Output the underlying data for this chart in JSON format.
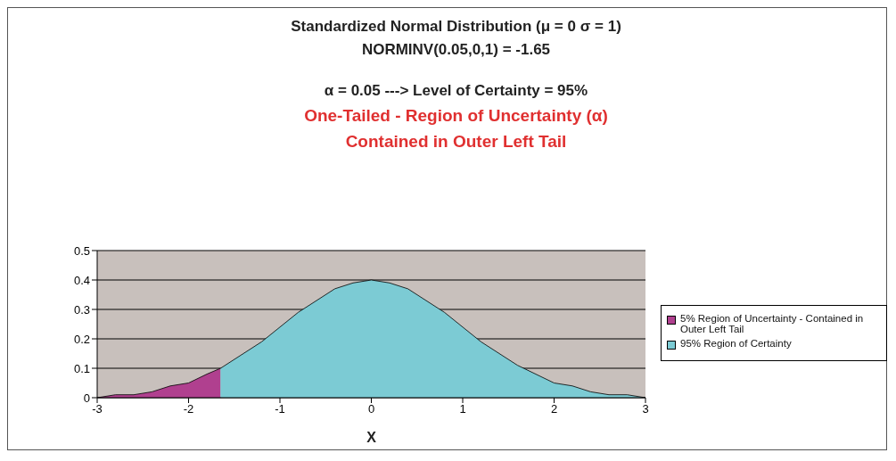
{
  "chart_data": {
    "type": "area",
    "title": "Standardized Normal Distribution  (μ = 0    σ = 1)",
    "subtitle": "NORMINV(0.05,0,1)  =  -1.65",
    "annotations": [
      "α = 0.05  ---> Level of Certainty = 95%",
      "One-Tailed - Region of Uncertainty (α)",
      "Contained in Outer Left Tail"
    ],
    "xlabel": "X",
    "series": [
      {
        "name": "5% Region of Uncertainty - Contained in Outer Left Tail",
        "color": "#b0408f",
        "x": [
          -3,
          -2.8,
          -2.6,
          -2.4,
          -2.2,
          -2,
          -1.8,
          -1.65
        ],
        "values": [
          0,
          0.01,
          0.01,
          0.02,
          0.04,
          0.05,
          0.08,
          0.1
        ]
      },
      {
        "name": "95% Region of Certainty",
        "color": "#7ccbd4",
        "x": [
          -1.65,
          -1.4,
          -1.2,
          -1,
          -0.8,
          -0.6,
          -0.4,
          -0.2,
          0,
          0.2,
          0.4,
          0.6,
          0.8,
          1,
          1.2,
          1.4,
          1.6,
          1.8,
          2,
          2.2,
          2.4,
          2.6,
          2.8,
          3
        ],
        "values": [
          0.1,
          0.15,
          0.19,
          0.24,
          0.29,
          0.33,
          0.37,
          0.39,
          0.4,
          0.39,
          0.37,
          0.33,
          0.29,
          0.24,
          0.19,
          0.15,
          0.11,
          0.08,
          0.05,
          0.04,
          0.02,
          0.01,
          0.01,
          0
        ]
      }
    ],
    "xlim": [
      -3,
      3
    ],
    "xticks": [
      -3,
      -2,
      -1,
      0,
      1,
      2,
      3
    ],
    "ylim": [
      0,
      0.5
    ],
    "yticks": [
      0,
      0.1,
      0.2,
      0.3,
      0.4,
      0.5
    ],
    "grid": "y",
    "legend": "right"
  }
}
